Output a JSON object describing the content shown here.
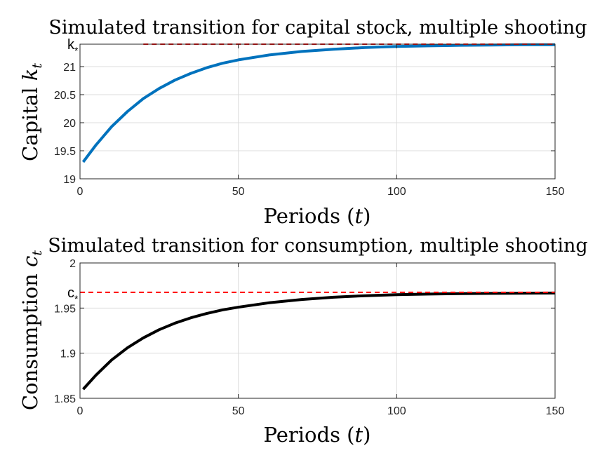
{
  "chart_data": [
    {
      "type": "line",
      "title": "Simulated transition for capital stock, multiple shooting",
      "xlabel_text": "Periods (",
      "xlabel_var": "t",
      "xlabel_end": ")",
      "ylabel_text": "Capital ",
      "ylabel_var": "k",
      "ylabel_sub": "t",
      "xlim": [
        0,
        150
      ],
      "ylim": [
        19,
        21.4
      ],
      "xticks": [
        0,
        50,
        100,
        150
      ],
      "yticks": [
        19,
        19.5,
        20,
        20.5,
        21
      ],
      "xtick_labels": [
        "0",
        "50",
        "100",
        "150"
      ],
      "ytick_labels": [
        "19",
        "19.5",
        "20",
        "20.5",
        "21"
      ],
      "grid": true,
      "series": [
        {
          "color": "#0072BD",
          "style": "solid",
          "x": [
            1,
            5,
            10,
            15,
            20,
            25,
            30,
            35,
            40,
            45,
            50,
            60,
            70,
            80,
            90,
            100,
            110,
            120,
            130,
            140,
            150
          ],
          "y": [
            19.3,
            19.6,
            19.93,
            20.2,
            20.43,
            20.61,
            20.76,
            20.88,
            20.98,
            21.06,
            21.12,
            21.21,
            21.27,
            21.31,
            21.34,
            21.36,
            21.37,
            21.38,
            21.385,
            21.39,
            21.39
          ]
        }
      ],
      "reference_line": {
        "label": "k",
        "label_sub": "*",
        "y": 21.4,
        "x_start": 20,
        "x_end": 150,
        "color": "#FF0000",
        "style": "dashed"
      }
    },
    {
      "type": "line",
      "title": "Simulated transition for consumption, multiple shooting",
      "xlabel_text": "Periods (",
      "xlabel_var": "t",
      "xlabel_end": ")",
      "ylabel_text": "Consumption ",
      "ylabel_var": "c",
      "ylabel_sub": "t",
      "xlim": [
        0,
        150
      ],
      "ylim": [
        1.85,
        2.0
      ],
      "xticks": [
        0,
        50,
        100,
        150
      ],
      "yticks": [
        1.85,
        1.9,
        1.95,
        2.0
      ],
      "xtick_labels": [
        "0",
        "50",
        "100",
        "150"
      ],
      "ytick_labels": [
        "1.85",
        "1.9",
        "1.95",
        "2"
      ],
      "grid": true,
      "series": [
        {
          "color": "#000000",
          "style": "solid",
          "x": [
            1,
            5,
            10,
            15,
            20,
            25,
            30,
            35,
            40,
            45,
            50,
            60,
            70,
            80,
            90,
            100,
            110,
            120,
            130,
            140,
            150
          ],
          "y": [
            1.86,
            1.8755,
            1.8925,
            1.906,
            1.917,
            1.926,
            1.9333,
            1.9392,
            1.944,
            1.948,
            1.951,
            1.956,
            1.9595,
            1.962,
            1.9637,
            1.9648,
            1.9655,
            1.966,
            1.9663,
            1.9665,
            1.9667
          ]
        }
      ],
      "reference_line": {
        "label": "c",
        "label_sub": "*",
        "y": 1.9675,
        "x_start": 0,
        "x_end": 150,
        "color": "#FF0000",
        "style": "dashed"
      }
    }
  ]
}
